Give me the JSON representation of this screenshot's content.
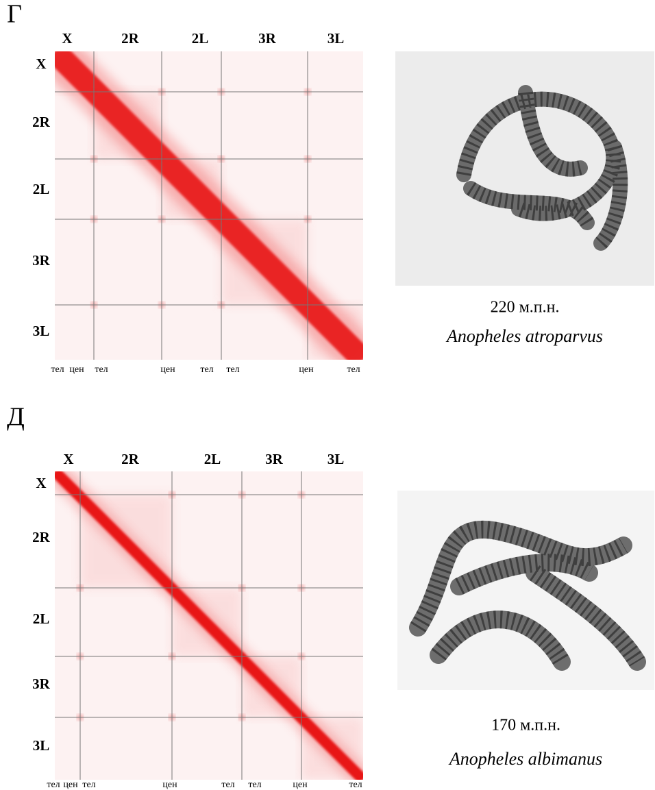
{
  "panels": [
    {
      "letter": "Г",
      "columns": [
        "X",
        "2R",
        "2L",
        "3R",
        "3L"
      ],
      "rows": [
        "X",
        "2R",
        "2L",
        "3R",
        "3L"
      ],
      "bottom_labels": [
        "тел",
        "цен",
        "тел",
        "цен",
        "тел",
        "тел",
        "цен",
        "тел"
      ],
      "size": "220 м.п.н.",
      "species": "Anopheles atroparvus"
    },
    {
      "letter": "Д",
      "columns": [
        "X",
        "2R",
        "2L",
        "3R",
        "3L"
      ],
      "rows": [
        "X",
        "2R",
        "2L",
        "3R",
        "3L"
      ],
      "bottom_labels": [
        "тел",
        "цен",
        "тел",
        "цен",
        "тел",
        "тел",
        "цен",
        "тел"
      ],
      "size": "170 м.п.н.",
      "species": "Anopheles albimanus"
    }
  ]
}
